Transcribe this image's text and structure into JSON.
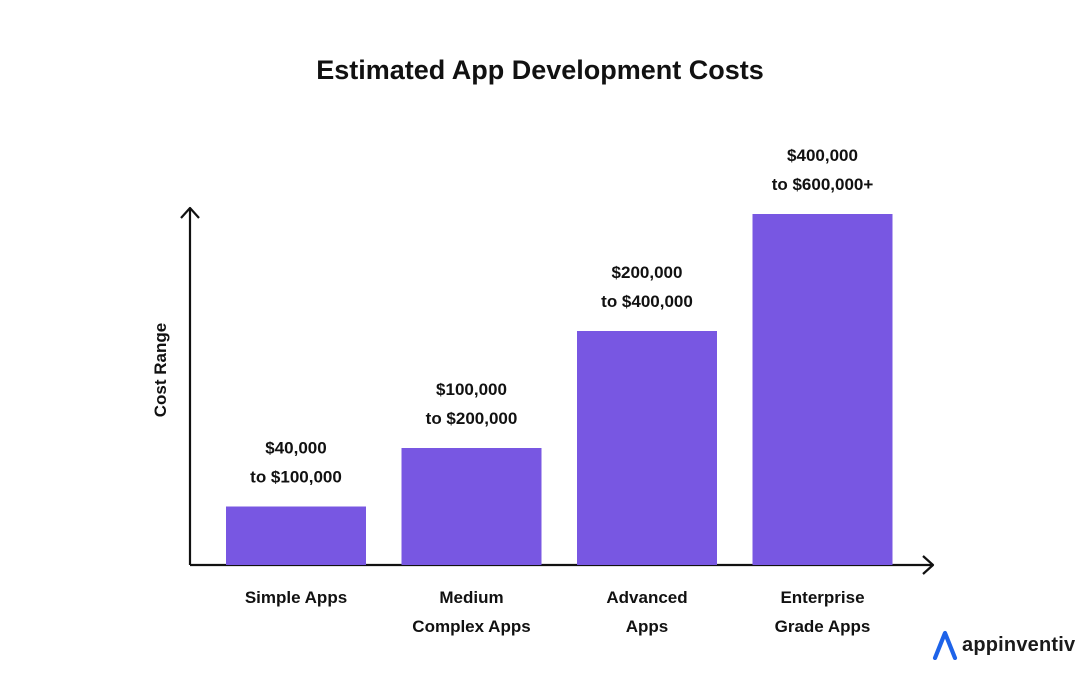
{
  "chart_data": {
    "type": "bar",
    "title": "Estimated App Development Costs",
    "ylabel": "Cost Range",
    "xlabel": "",
    "categories": [
      [
        "Simple Apps"
      ],
      [
        "Medium",
        "Complex Apps"
      ],
      [
        "Advanced",
        "Apps"
      ],
      [
        "Enterprise",
        "Grade Apps"
      ]
    ],
    "values": [
      100000,
      200000,
      400000,
      600000
    ],
    "value_labels": [
      [
        "$40,000",
        "to $100,000"
      ],
      [
        "$100,000",
        "to $200,000"
      ],
      [
        "$200,000",
        "to $400,000"
      ],
      [
        "$400,000",
        "to $600,000+"
      ]
    ],
    "bar_color": "#7857E2",
    "grid": false,
    "legend": "none"
  },
  "brand": {
    "name": "appinventiv",
    "accent_color": "#1E63E9"
  }
}
